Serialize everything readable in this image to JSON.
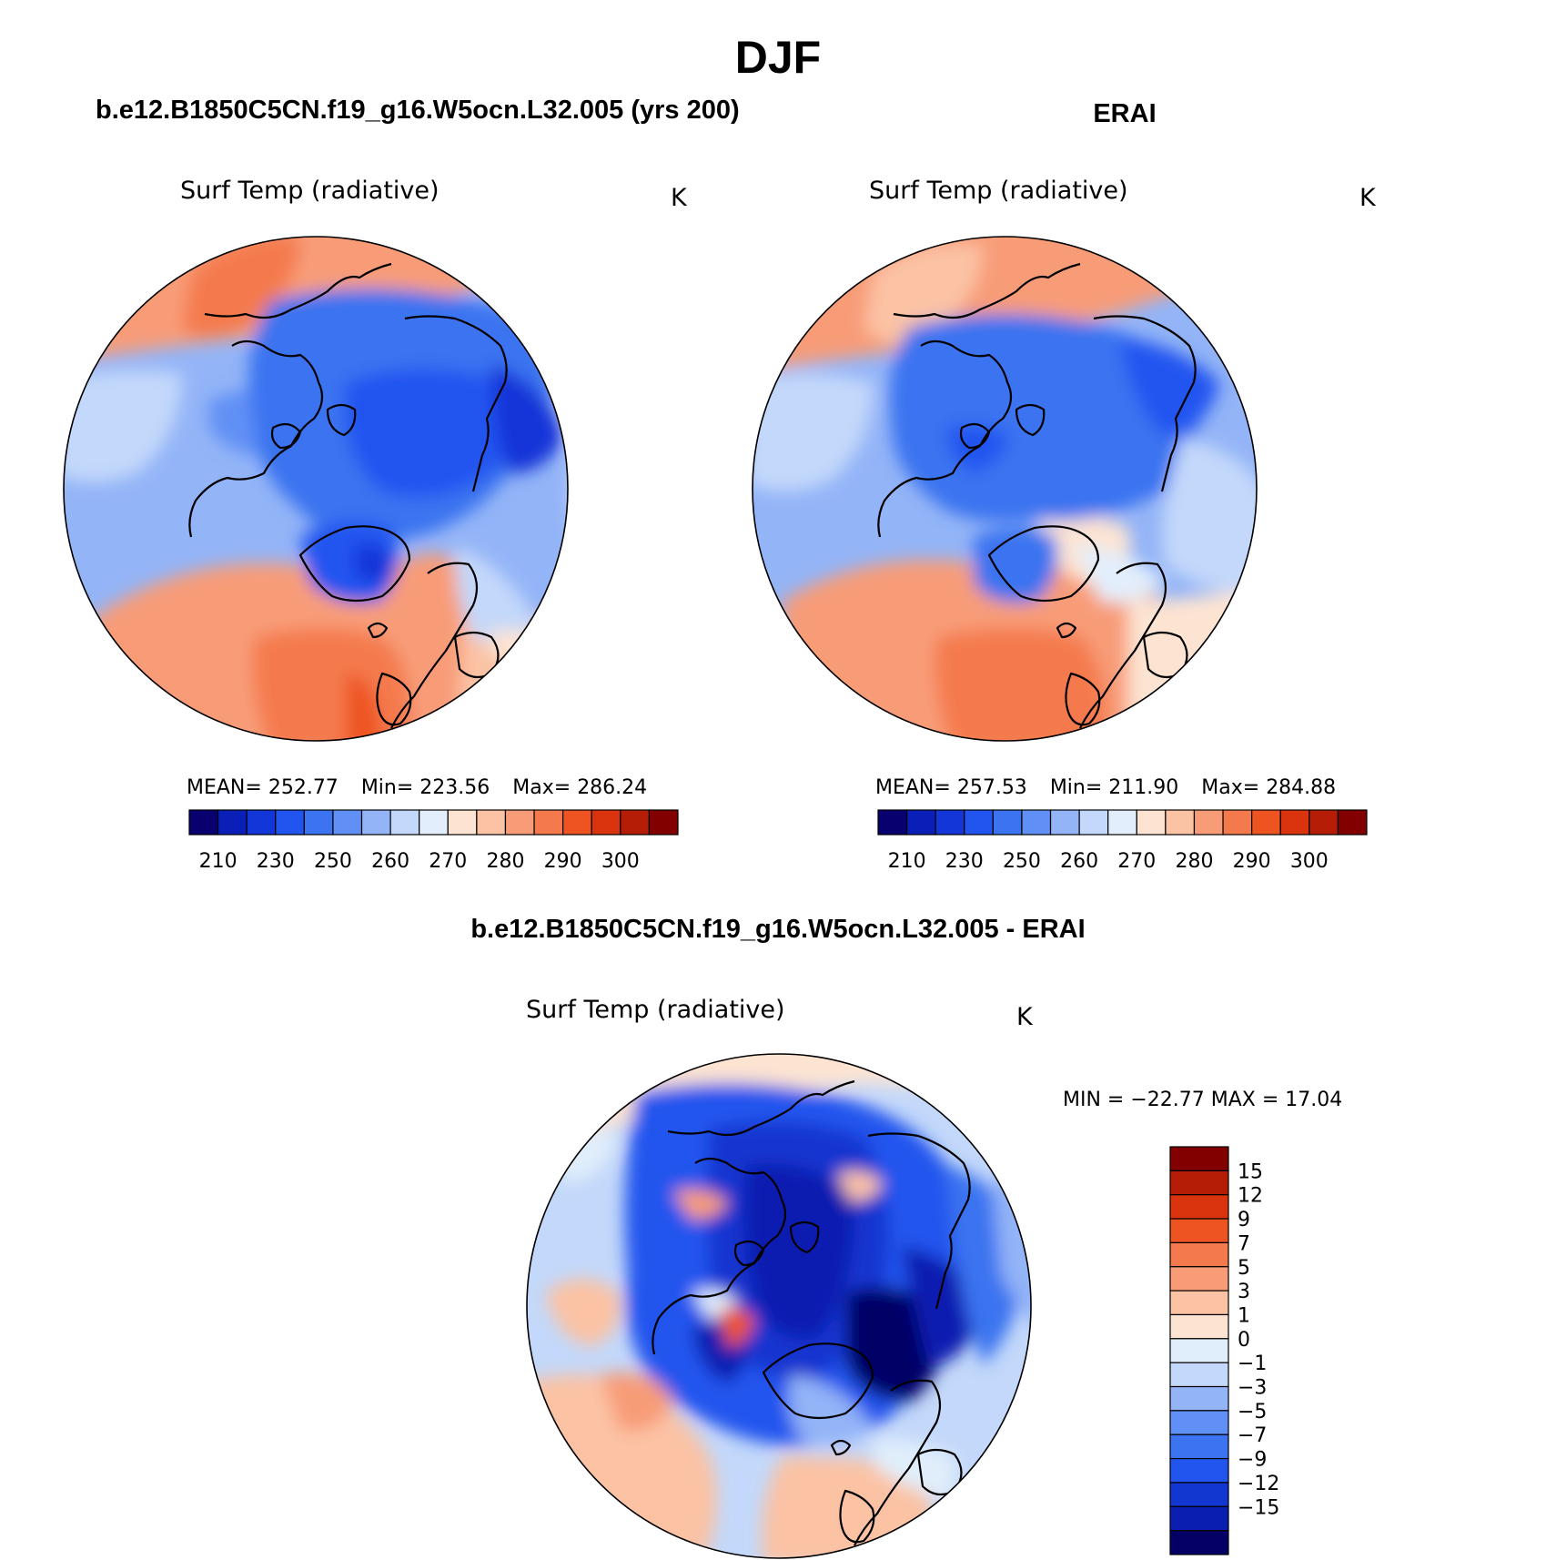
{
  "figure": {
    "season": "DJF",
    "model_title": "b.e12.B1850C5CN.f19_g16.W5ocn.L32.005 (yrs 200)",
    "obs_title": "ERAI",
    "diff_title": "b.e12.B1850C5CN.f19_g16.W5ocn.L32.005 - ERAI"
  },
  "colors": {
    "abs_scale": [
      "#08006e",
      "#0a1fb8",
      "#1236d8",
      "#2255f0",
      "#3b73f0",
      "#6090f5",
      "#93b4f7",
      "#c3d8fa",
      "#e2eefb",
      "#fde4d2",
      "#fbc2a4",
      "#f89c78",
      "#f47a4e",
      "#ee5422",
      "#d9340d",
      "#b51d06",
      "#830000"
    ],
    "diff_scale": [
      "#050066",
      "#0a1fb0",
      "#1236d0",
      "#2255ee",
      "#3b73f0",
      "#6090f5",
      "#93b4f7",
      "#c3d8fa",
      "#e0eefb",
      "#fde4d2",
      "#fbc2a4",
      "#f89c78",
      "#f47a4e",
      "#ee5422",
      "#d9340d",
      "#b51d06",
      "#830000"
    ]
  },
  "chart_data": [
    {
      "type": "heatmap",
      "projection": "north-polar-stereographic",
      "title": "b.e12.B1850C5CN.f19_g16.W5ocn.L32.005 (yrs 200)",
      "variable": "Surf Temp (radiative)",
      "units": "K",
      "stats": {
        "MEAN": "252.77",
        "Min": "223.56",
        "Max": "286.24"
      },
      "colorbar_ticks": [
        "210",
        "230",
        "250",
        "260",
        "270",
        "280",
        "290",
        "300"
      ],
      "colorbar_levels": [
        210,
        220,
        230,
        240,
        250,
        255,
        260,
        265,
        270,
        275,
        280,
        285,
        290,
        295,
        300,
        305
      ]
    },
    {
      "type": "heatmap",
      "projection": "north-polar-stereographic",
      "title": "ERAI",
      "variable": "Surf Temp (radiative)",
      "units": "K",
      "stats": {
        "MEAN": "257.53",
        "Min": "211.90",
        "Max": "284.88"
      },
      "colorbar_ticks": [
        "210",
        "230",
        "250",
        "260",
        "270",
        "280",
        "290",
        "300"
      ],
      "colorbar_levels": [
        210,
        220,
        230,
        240,
        250,
        255,
        260,
        265,
        270,
        275,
        280,
        285,
        290,
        295,
        300,
        305
      ]
    },
    {
      "type": "heatmap",
      "projection": "north-polar-stereographic",
      "title": "b.e12.B1850C5CN.f19_g16.W5ocn.L32.005 - ERAI",
      "variable": "Surf Temp (radiative)",
      "units": "K",
      "stats": {
        "MIN": "-22.77",
        "MAX": "17.04"
      },
      "stats_text": "MIN = −22.77 MAX =   17.04",
      "colorbar_ticks": [
        "15",
        "12",
        "9",
        "7",
        "5",
        "3",
        "1",
        "0",
        "−1",
        "−3",
        "−5",
        "−7",
        "−9",
        "−12",
        "−15"
      ],
      "colorbar_levels": [
        -15,
        -12,
        -9,
        -7,
        -5,
        -3,
        -1,
        0,
        1,
        3,
        5,
        7,
        9,
        12,
        15
      ]
    }
  ]
}
